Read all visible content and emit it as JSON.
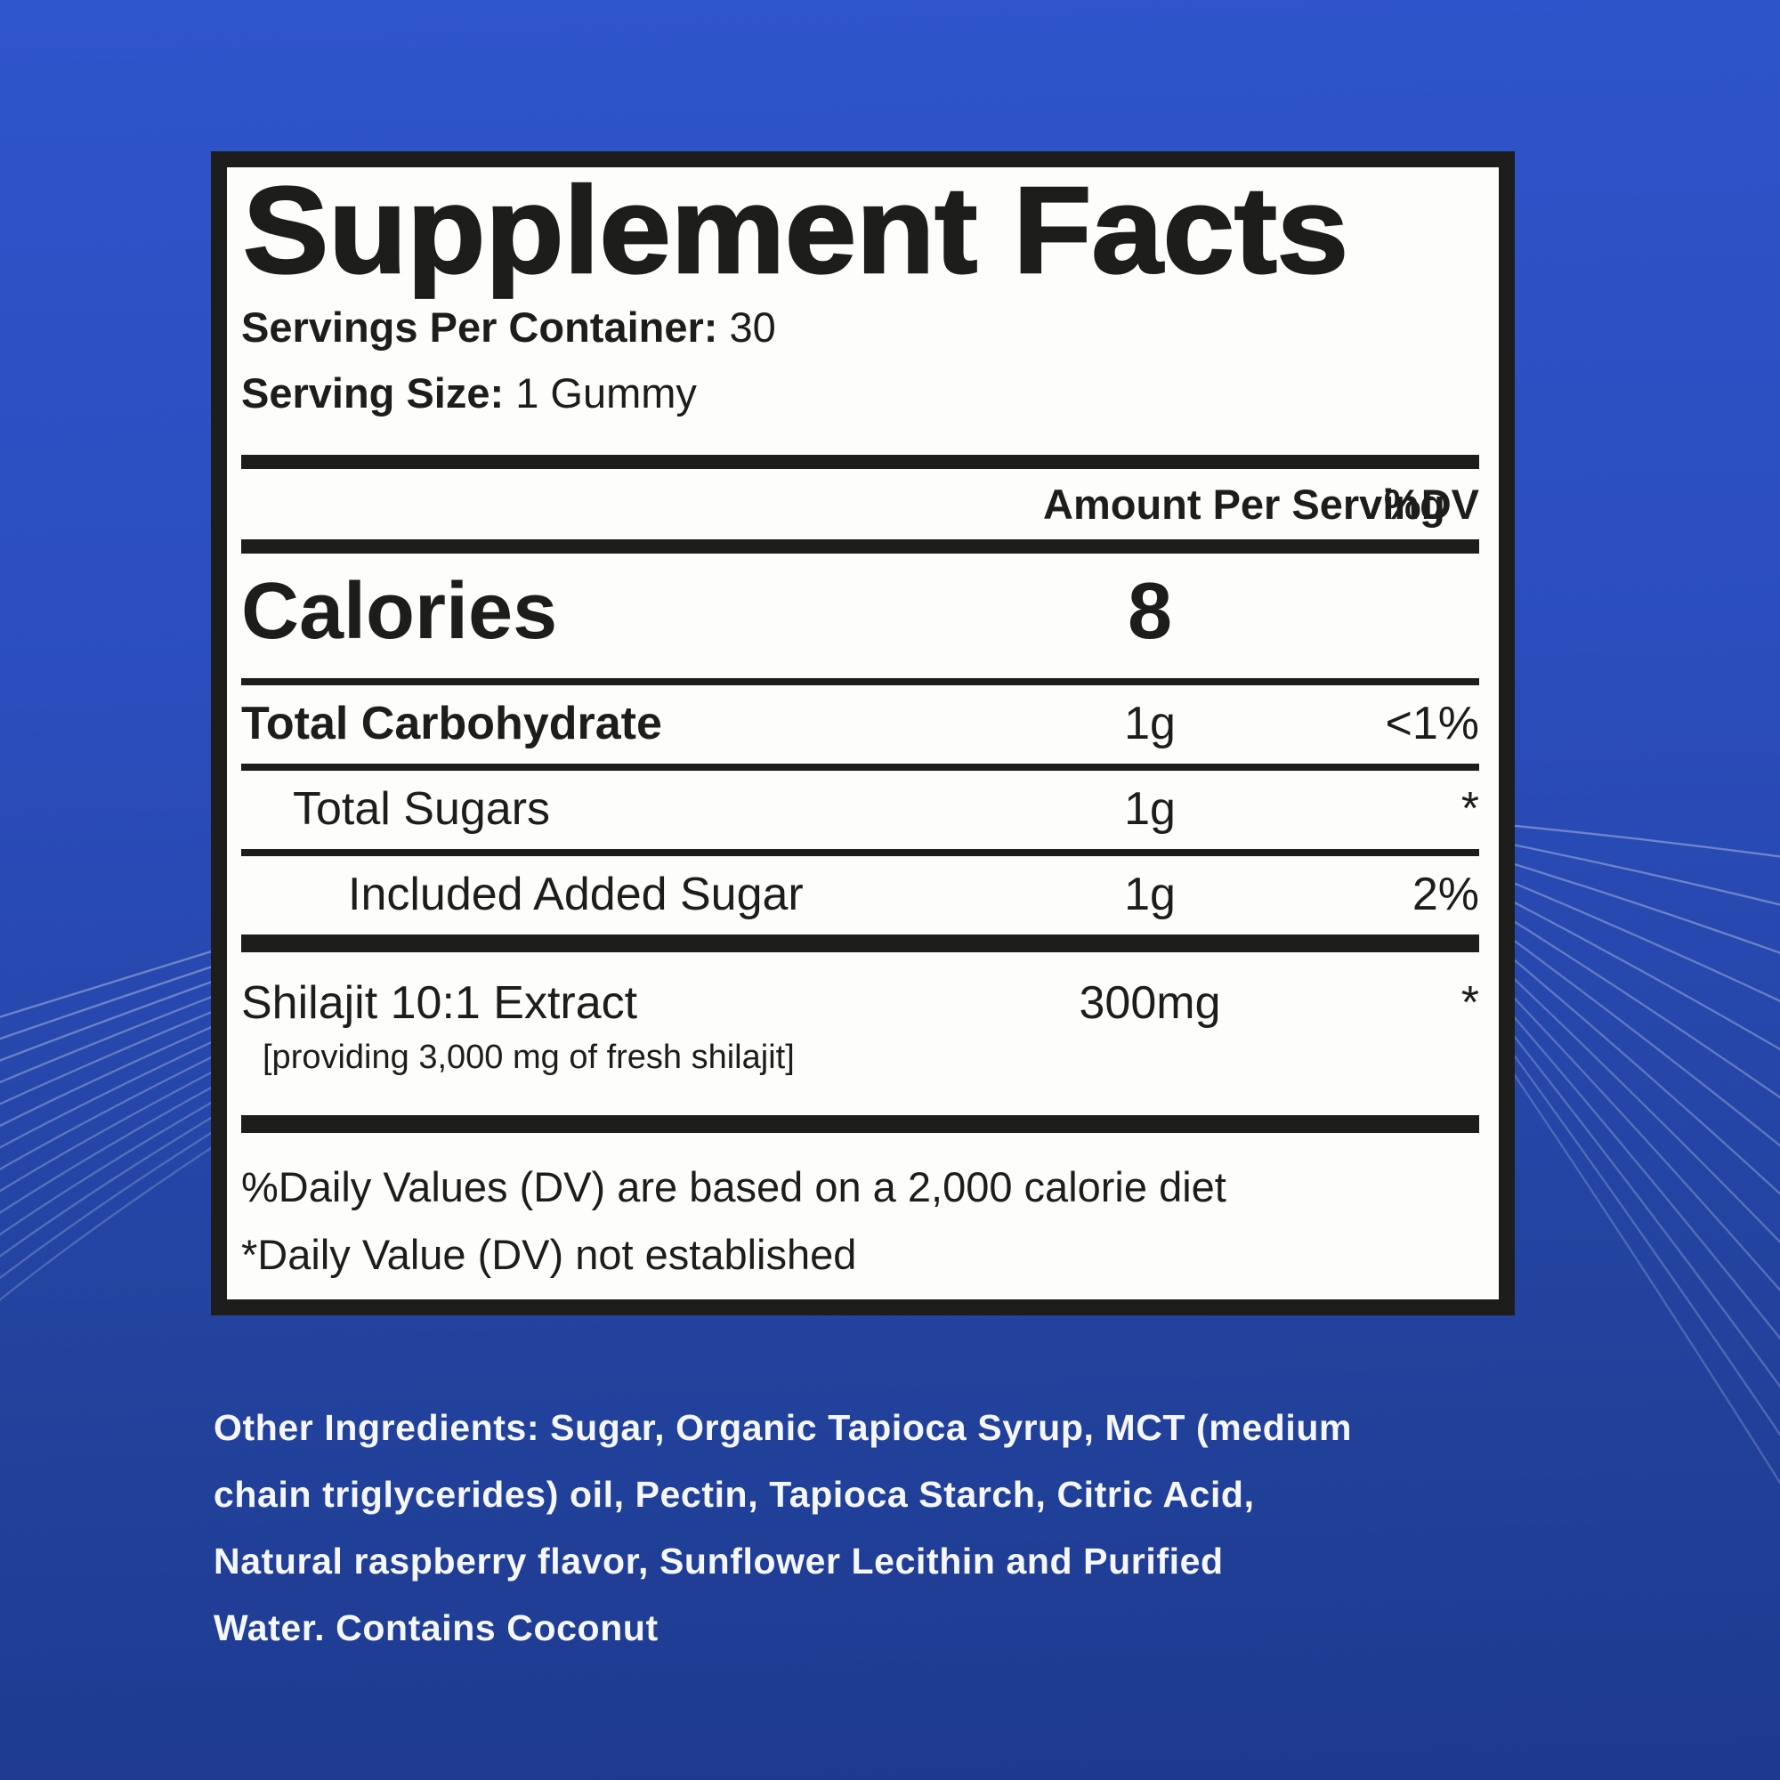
{
  "background": {
    "top_color": "#2f55cc",
    "bottom_color": "#1d3a8e",
    "accent_line_color": "#dfe6f5"
  },
  "label": {
    "title": "Supplement Facts",
    "servings_per_container_label": "Servings Per Container:",
    "servings_per_container_value": "30",
    "serving_size_label": "Serving Size:",
    "serving_size_value": "1 Gummy",
    "column_header": {
      "amount": "Amount Per Serving",
      "dv": "%DV"
    },
    "calories_label": "Calories",
    "calories_value": "8",
    "rows": [
      {
        "name": "Total Carbohydrate",
        "amount": "1g",
        "dv": "<1%"
      },
      {
        "name": "Total Sugars",
        "amount": "1g",
        "dv": "*"
      },
      {
        "name": "Included Added Sugar",
        "amount": "1g",
        "dv": "2%"
      }
    ],
    "extract": {
      "name": "Shilajit 10:1 Extract",
      "detail": "[providing 3,000 mg of fresh shilajit]",
      "amount": "300mg",
      "dv": "*"
    },
    "footnotes": [
      "%Daily Values (DV) are based on a 2,000 calorie diet",
      "*Daily Value (DV) not established"
    ]
  },
  "ingredients": {
    "lines": [
      "Other Ingredients: Sugar, Organic Tapioca Syrup, MCT (medium",
      "chain triglycerides) oil, Pectin, Tapioca Starch, Citric Acid,",
      "Natural raspberry flavor, Sunflower Lecithin and Purified",
      "Water. Contains Coconut"
    ]
  }
}
